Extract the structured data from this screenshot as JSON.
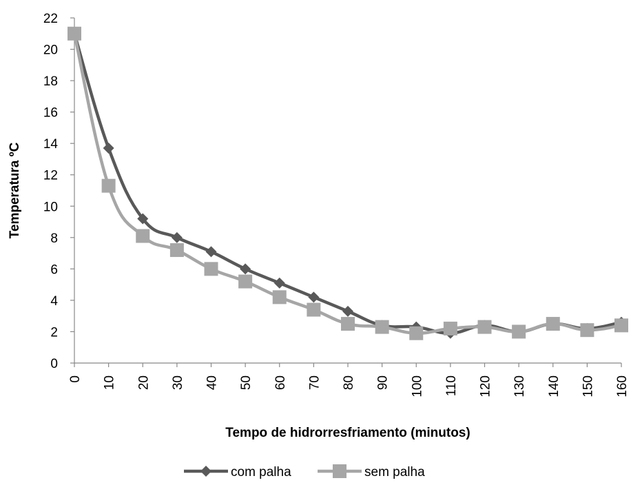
{
  "chart_data": {
    "type": "line",
    "xlabel": "Tempo de hidrorresfriamento (minutos)",
    "ylabel": "Temperatura ºC",
    "x": [
      0,
      10,
      20,
      30,
      40,
      50,
      60,
      70,
      80,
      90,
      100,
      110,
      120,
      130,
      140,
      150,
      160
    ],
    "ylim": [
      0,
      22
    ],
    "yticks": [
      0,
      2,
      4,
      6,
      8,
      10,
      12,
      14,
      16,
      18,
      20,
      22
    ],
    "grid": false,
    "legend_position": "bottom",
    "series": [
      {
        "name": "com palha",
        "color": "#595959",
        "marker": "diamond",
        "values": [
          21.0,
          13.7,
          9.2,
          8.0,
          7.1,
          6.0,
          5.1,
          4.2,
          3.3,
          2.4,
          2.3,
          1.9,
          2.4,
          2.0,
          2.5,
          2.2,
          2.6
        ]
      },
      {
        "name": "sem palha",
        "color": "#a6a6a6",
        "marker": "square",
        "values": [
          21.0,
          11.3,
          8.1,
          7.2,
          6.0,
          5.2,
          4.2,
          3.4,
          2.5,
          2.3,
          1.9,
          2.2,
          2.3,
          2.0,
          2.5,
          2.1,
          2.4
        ]
      }
    ]
  }
}
